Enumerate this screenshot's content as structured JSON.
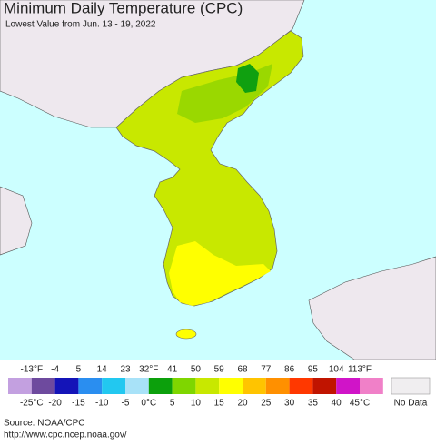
{
  "header": {
    "title": "Minimum Daily Temperature (CPC)",
    "subtitle": "Lowest Value from Jun. 13 - 19, 2022"
  },
  "legend": {
    "fahrenheit_labels": [
      "-13°F",
      "-4",
      "5",
      "14",
      "23",
      "32°F",
      "41",
      "50",
      "59",
      "68",
      "77",
      "86",
      "95",
      "104",
      "113°F"
    ],
    "celsius_labels": [
      "-25°C",
      "-20",
      "-15",
      "-10",
      "-5",
      "0°C",
      "5",
      "10",
      "15",
      "20",
      "25",
      "30",
      "35",
      "40",
      "45°C"
    ],
    "colors": [
      "#c3a0e0",
      "#6e4a9e",
      "#1414b8",
      "#2a8ef0",
      "#22c8f0",
      "#a8e2f8",
      "#0ca00c",
      "#7fd600",
      "#c8e800",
      "#ffff00",
      "#ffc400",
      "#ff9000",
      "#ff3800",
      "#c01400",
      "#d014c8",
      "#f080c8"
    ],
    "no_data_label": "No Data"
  },
  "source": {
    "line1": "Source: NOAA/CPC",
    "line2": "http://www.cpc.ncep.noaa.gov/"
  }
}
